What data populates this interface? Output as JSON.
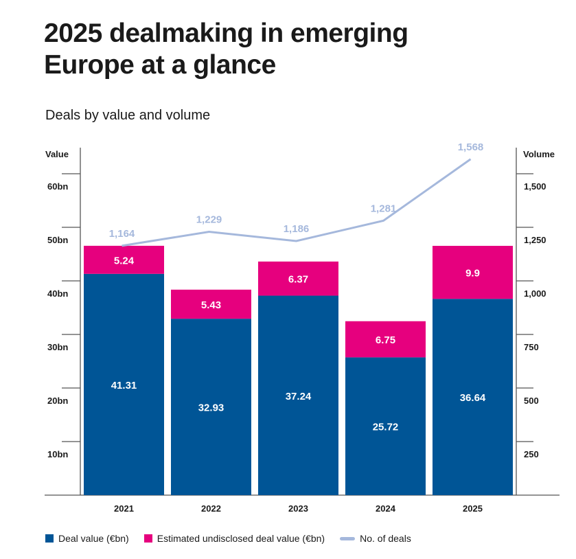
{
  "title": "2025 dealmaking in emerging Europe at a glance",
  "subtitle": "Deals by value and volume",
  "chart_data": {
    "type": "bar",
    "stacked": true,
    "categories": [
      "2021",
      "2022",
      "2023",
      "2024",
      "2025"
    ],
    "series": [
      {
        "name": "Deal value (€bn)",
        "values": [
          41.31,
          32.93,
          37.24,
          25.72,
          36.64
        ],
        "color": "#005596",
        "axis": "left"
      },
      {
        "name": "Estimated undisclosed deal value (€bn)",
        "values": [
          5.24,
          5.43,
          6.37,
          6.75,
          9.9
        ],
        "color": "#e6007e",
        "axis": "left"
      },
      {
        "name": "No. of deals",
        "type": "line",
        "values": [
          1164,
          1229,
          1186,
          1281,
          1568
        ],
        "color": "#a5b8dc",
        "axis": "right"
      }
    ],
    "left_axis": {
      "label": "Value",
      "ticks": [
        "10bn",
        "20bn",
        "30bn",
        "40bn",
        "50bn",
        "60bn"
      ],
      "tick_values": [
        10,
        20,
        30,
        40,
        50,
        60
      ],
      "ylim": [
        0,
        60
      ]
    },
    "right_axis": {
      "label": "Volume",
      "ticks": [
        "250",
        "500",
        "750",
        "1,000",
        "1,250",
        "1,500"
      ],
      "tick_values": [
        250,
        500,
        750,
        1000,
        1250,
        1500
      ],
      "ylim": [
        0,
        1500
      ]
    },
    "data_labels": {
      "deal_value": [
        "41.31",
        "32.93",
        "37.24",
        "25.72",
        "36.64"
      ],
      "undisclosed": [
        "5.24",
        "5.43",
        "6.37",
        "6.75",
        "9.9"
      ],
      "deals": [
        "1,164",
        "1,229",
        "1,186",
        "1,281",
        "1,568"
      ]
    },
    "legend_position": "bottom",
    "grid": false
  }
}
